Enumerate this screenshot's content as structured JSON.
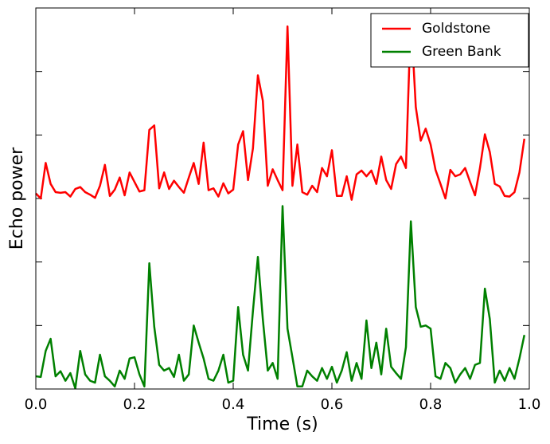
{
  "chart_data": {
    "type": "line",
    "xlabel": "Time (s)",
    "ylabel": "Echo power",
    "x": [
      0,
      0.01,
      0.02,
      0.03,
      0.04,
      0.05,
      0.06,
      0.07,
      0.08,
      0.09,
      0.1,
      0.11,
      0.12,
      0.13,
      0.14,
      0.15,
      0.16,
      0.17,
      0.18,
      0.19,
      0.2,
      0.21,
      0.22,
      0.23,
      0.24,
      0.25,
      0.26,
      0.27,
      0.28,
      0.29,
      0.3,
      0.31,
      0.32,
      0.33,
      0.34,
      0.35,
      0.36,
      0.37,
      0.38,
      0.39,
      0.4,
      0.41,
      0.42,
      0.43,
      0.44,
      0.45,
      0.46,
      0.47,
      0.48,
      0.49,
      0.5,
      0.51,
      0.52,
      0.53,
      0.54,
      0.55,
      0.56,
      0.57,
      0.58,
      0.59,
      0.6,
      0.61,
      0.62,
      0.63,
      0.64,
      0.65,
      0.66,
      0.67,
      0.68,
      0.69,
      0.7,
      0.71,
      0.72,
      0.73,
      0.74,
      0.75,
      0.76,
      0.77,
      0.78,
      0.79,
      0.8,
      0.81,
      0.82,
      0.83,
      0.84,
      0.85,
      0.86,
      0.87,
      0.88,
      0.89,
      0.9,
      0.91,
      0.92,
      0.93,
      0.94,
      0.95,
      0.96,
      0.97,
      0.98,
      0.99
    ],
    "series": [
      {
        "name": "Goldstone",
        "color": "#ff0000",
        "values": [
          3.08,
          3.0,
          3.56,
          3.23,
          3.1,
          3.09,
          3.1,
          3.03,
          3.15,
          3.18,
          3.1,
          3.06,
          3.01,
          3.2,
          3.53,
          3.04,
          3.14,
          3.33,
          3.05,
          3.41,
          3.26,
          3.11,
          3.13,
          4.08,
          4.15,
          3.16,
          3.41,
          3.15,
          3.28,
          3.18,
          3.09,
          3.33,
          3.56,
          3.23,
          3.88,
          3.13,
          3.16,
          3.03,
          3.24,
          3.08,
          3.14,
          3.85,
          4.06,
          3.29,
          3.79,
          4.94,
          4.54,
          3.2,
          3.46,
          3.29,
          3.13,
          5.71,
          3.2,
          3.85,
          3.1,
          3.06,
          3.2,
          3.1,
          3.48,
          3.35,
          3.76,
          3.04,
          3.04,
          3.35,
          2.98,
          3.38,
          3.44,
          3.35,
          3.44,
          3.23,
          3.66,
          3.29,
          3.15,
          3.54,
          3.66,
          3.48,
          5.88,
          4.44,
          3.91,
          4.1,
          3.85,
          3.45,
          3.23,
          3.0,
          3.45,
          3.35,
          3.38,
          3.48,
          3.26,
          3.05,
          3.48,
          4.01,
          3.73,
          3.23,
          3.19,
          3.04,
          3.03,
          3.1,
          3.41,
          3.94
        ]
      },
      {
        "name": "Green Bank",
        "color": "#008000",
        "values": [
          0.2,
          0.19,
          0.6,
          0.79,
          0.2,
          0.28,
          0.13,
          0.25,
          0.01,
          0.6,
          0.23,
          0.13,
          0.1,
          0.54,
          0.2,
          0.13,
          0.04,
          0.29,
          0.16,
          0.48,
          0.5,
          0.23,
          0.04,
          1.98,
          0.98,
          0.38,
          0.29,
          0.33,
          0.19,
          0.54,
          0.13,
          0.23,
          1.0,
          0.73,
          0.48,
          0.16,
          0.13,
          0.29,
          0.54,
          0.1,
          0.13,
          1.29,
          0.54,
          0.29,
          1.23,
          2.08,
          1.1,
          0.29,
          0.41,
          0.16,
          2.88,
          0.95,
          0.5,
          0.04,
          0.04,
          0.29,
          0.2,
          0.13,
          0.33,
          0.16,
          0.35,
          0.1,
          0.29,
          0.58,
          0.13,
          0.41,
          0.16,
          1.08,
          0.33,
          0.73,
          0.23,
          0.95,
          0.35,
          0.25,
          0.16,
          0.66,
          2.64,
          1.29,
          0.98,
          1.0,
          0.95,
          0.2,
          0.16,
          0.41,
          0.33,
          0.1,
          0.23,
          0.33,
          0.16,
          0.38,
          0.41,
          1.58,
          1.1,
          0.1,
          0.29,
          0.13,
          0.33,
          0.16,
          0.48,
          0.85
        ]
      }
    ],
    "xlim": [
      0,
      1.0
    ],
    "xticks": [
      {
        "value": 0,
        "label": "0.0"
      },
      0.2,
      0.4,
      0.6,
      0.8,
      {
        "value": 1.0,
        "label": "1.0"
      }
    ],
    "ylim": [
      0,
      6
    ],
    "yticks": [
      0,
      1,
      2,
      3,
      4,
      5,
      6
    ],
    "legend": "upper right"
  }
}
